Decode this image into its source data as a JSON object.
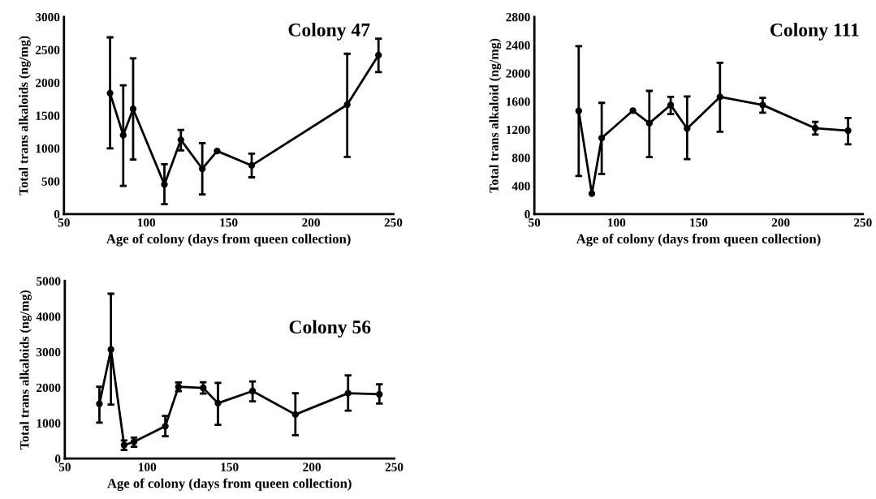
{
  "chart_data": [
    {
      "type": "line",
      "title": "Colony 47",
      "xlabel": "Age of colony (days from queen collection)",
      "ylabel": "Total trans alkaloids (ng/mg)",
      "xlim": [
        50,
        250
      ],
      "xticks": [
        50,
        100,
        150,
        200,
        250
      ],
      "ylim": [
        0,
        3000
      ],
      "yticks": [
        0,
        500,
        1000,
        1500,
        2000,
        2500,
        3000
      ],
      "grid": false,
      "marker": "circle",
      "line_style": "solid",
      "series": [
        {
          "color": "#000000",
          "x": [
            78,
            86,
            92,
            111,
            121,
            134,
            143,
            164,
            222,
            241
          ],
          "values": [
            1840,
            1200,
            1600,
            450,
            1130,
            690,
            960,
            740,
            1665,
            2420
          ],
          "errors": [
            [
              1000,
              2690
            ],
            [
              430,
              1960
            ],
            [
              830,
              2370
            ],
            [
              150,
              760
            ],
            [
              970,
              1280
            ],
            [
              300,
              1080
            ],
            null,
            [
              560,
              920
            ],
            [
              870,
              2440
            ],
            [
              2160,
              2670
            ]
          ]
        }
      ]
    },
    {
      "type": "line",
      "title": "Colony 111",
      "xlabel": "Age of colony (days from queen collection)",
      "ylabel": "Total trans alkaloid (ng/mg)",
      "xlim": [
        50,
        250
      ],
      "xticks": [
        50,
        100,
        150,
        200,
        250
      ],
      "ylim": [
        0,
        2800
      ],
      "yticks": [
        0,
        400,
        800,
        1200,
        1600,
        2000,
        2400,
        2800
      ],
      "grid": false,
      "marker": "circle",
      "line_style": "solid",
      "series": [
        {
          "color": "#000000",
          "x": [
            77,
            85,
            91,
            110,
            120,
            133,
            143,
            163,
            189,
            221,
            241
          ],
          "values": [
            1465,
            290,
            1080,
            1470,
            1290,
            1550,
            1215,
            1665,
            1550,
            1220,
            1185
          ],
          "errors": [
            [
              540,
              2385
            ],
            null,
            [
              570,
              1580
            ],
            null,
            [
              810,
              1750
            ],
            [
              1420,
              1665
            ],
            [
              780,
              1670
            ],
            [
              1170,
              2150
            ],
            [
              1440,
              1650
            ],
            [
              1130,
              1310
            ],
            [
              990,
              1365
            ]
          ]
        }
      ]
    },
    {
      "type": "line",
      "title": "Colony 56",
      "xlabel": "Age of colony (days from queen collection)",
      "ylabel": "Total trans alkaloids (ng/mg)",
      "xlim": [
        50,
        250
      ],
      "xticks": [
        50,
        100,
        150,
        200,
        250
      ],
      "ylim": [
        0,
        5000
      ],
      "yticks": [
        0,
        1000,
        2000,
        3000,
        4000,
        5000
      ],
      "grid": false,
      "marker": "circle",
      "line_style": "solid",
      "series": [
        {
          "color": "#000000",
          "x": [
            71,
            78,
            86,
            92,
            111,
            119,
            134,
            143,
            164,
            190,
            222,
            241
          ],
          "values": [
            1540,
            3070,
            380,
            470,
            910,
            2020,
            1990,
            1560,
            1900,
            1240,
            1840,
            1810
          ],
          "errors": [
            [
              1010,
              2020
            ],
            [
              1520,
              4640
            ],
            [
              240,
              510
            ],
            [
              330,
              590
            ],
            [
              630,
              1200
            ],
            [
              1900,
              2140
            ],
            [
              1830,
              2150
            ],
            [
              950,
              2130
            ],
            [
              1610,
              2170
            ],
            [
              660,
              1840
            ],
            [
              1350,
              2340
            ],
            [
              1550,
              2090
            ]
          ]
        }
      ]
    }
  ]
}
